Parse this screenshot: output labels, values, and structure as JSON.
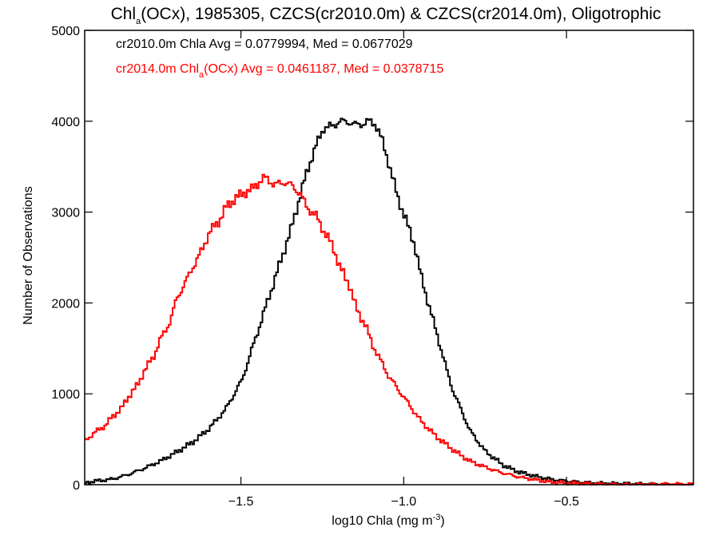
{
  "chart_data": {
    "type": "line",
    "step": true,
    "title": {
      "text": "Chl",
      "sub": "a",
      "rest": "(OCx), 1985305, CZCS(cr2010.0m) & CZCS(cr2014.0m), Oligotrophic"
    },
    "xlabel": {
      "text": "log10 Chla (mg m",
      "sup": "-3",
      "rest": ")"
    },
    "ylabel": "Number of Observations",
    "xlim": [
      -1.98,
      -0.11
    ],
    "ylim": [
      0,
      5000
    ],
    "xticks": [
      {
        "value": -1.5,
        "label": "−1.5"
      },
      {
        "value": -1.0,
        "label": "−1.0"
      },
      {
        "value": -0.5,
        "label": "−0.5"
      }
    ],
    "yticks": [
      {
        "value": 0,
        "label": "0"
      },
      {
        "value": 1000,
        "label": "1000"
      },
      {
        "value": 2000,
        "label": "2000"
      },
      {
        "value": 3000,
        "label": "3000"
      },
      {
        "value": 4000,
        "label": "4000"
      },
      {
        "value": 5000,
        "label": "5000"
      }
    ],
    "grid": false,
    "series": [
      {
        "name": "cr2010.0m Chla",
        "color": "#000000",
        "legend": "cr2010.0m Chla Avg = 0.0779994, Med = 0.0677029",
        "x": [
          -1.98,
          -1.95,
          -1.9,
          -1.85,
          -1.8,
          -1.75,
          -1.7,
          -1.65,
          -1.6,
          -1.55,
          -1.5,
          -1.45,
          -1.4,
          -1.35,
          -1.3,
          -1.27,
          -1.25,
          -1.22,
          -1.2,
          -1.17,
          -1.15,
          -1.13,
          -1.11,
          -1.09,
          -1.07,
          -1.05,
          -1.02,
          -1.0,
          -0.97,
          -0.95,
          -0.92,
          -0.9,
          -0.87,
          -0.85,
          -0.82,
          -0.8,
          -0.77,
          -0.75,
          -0.72,
          -0.7,
          -0.67,
          -0.65,
          -0.6,
          -0.55,
          -0.5,
          -0.45,
          -0.4,
          -0.35,
          -0.3,
          -0.25,
          -0.2,
          -0.15,
          -0.11
        ],
        "y": [
          20,
          40,
          60,
          110,
          180,
          260,
          360,
          470,
          620,
          830,
          1150,
          1700,
          2250,
          2800,
          3450,
          3750,
          3920,
          3950,
          4000,
          3990,
          3960,
          3970,
          4000,
          3970,
          3800,
          3550,
          3150,
          2950,
          2650,
          2300,
          1900,
          1650,
          1250,
          1020,
          770,
          600,
          450,
          360,
          280,
          220,
          170,
          140,
          95,
          60,
          40,
          25,
          15,
          10,
          8,
          5,
          3,
          2,
          2
        ]
      },
      {
        "name": "cr2014.0m Chla(OCx)",
        "color": "#ff0000",
        "legend": {
          "text": "cr2014.0m Chl",
          "sub": "a",
          "rest": "(OCx) Avg = 0.0461187, Med = 0.0378715"
        },
        "x": [
          -1.98,
          -1.95,
          -1.92,
          -1.9,
          -1.87,
          -1.85,
          -1.82,
          -1.8,
          -1.77,
          -1.75,
          -1.72,
          -1.7,
          -1.67,
          -1.65,
          -1.62,
          -1.6,
          -1.57,
          -1.55,
          -1.52,
          -1.5,
          -1.47,
          -1.45,
          -1.43,
          -1.42,
          -1.4,
          -1.37,
          -1.35,
          -1.32,
          -1.3,
          -1.27,
          -1.25,
          -1.22,
          -1.2,
          -1.17,
          -1.15,
          -1.12,
          -1.1,
          -1.05,
          -1.0,
          -0.95,
          -0.9,
          -0.85,
          -0.8,
          -0.75,
          -0.7,
          -0.65,
          -0.6,
          -0.55,
          -0.5,
          -0.45,
          -0.4,
          -0.35,
          -0.3,
          -0.25,
          -0.2,
          -0.15,
          -0.11
        ],
        "y": [
          490,
          580,
          650,
          740,
          840,
          960,
          1100,
          1250,
          1420,
          1600,
          1800,
          2050,
          2250,
          2400,
          2600,
          2780,
          2900,
          3050,
          3150,
          3200,
          3250,
          3320,
          3380,
          3360,
          3300,
          3330,
          3300,
          3200,
          3050,
          2950,
          2800,
          2620,
          2400,
          2200,
          1950,
          1750,
          1550,
          1200,
          950,
          700,
          520,
          380,
          260,
          190,
          130,
          85,
          55,
          30,
          20,
          12,
          8,
          5,
          3,
          2,
          2,
          2,
          2
        ]
      }
    ]
  }
}
